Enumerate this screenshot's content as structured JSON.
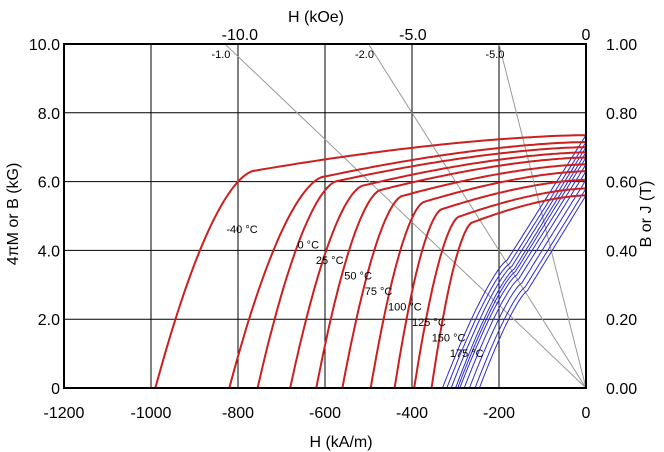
{
  "chart_data": {
    "type": "line",
    "title": "",
    "xlabel": "H (kA/m)",
    "x2label": "H (kOe)",
    "ylabel": "4πM or B (kG)",
    "y2label": "B or J  (T)",
    "xlim": [
      -1200,
      0
    ],
    "ylim": [
      0,
      10
    ],
    "y2lim": [
      0,
      1
    ],
    "x2lim": [
      -15.08,
      0
    ],
    "grid": true,
    "colors": {
      "intrinsic": "#cc1f1f",
      "normal": "#2b2bd0",
      "load_line": "#999999",
      "grid": "#000000"
    },
    "x_ticks": [
      "-1200",
      "-1000",
      "-800",
      "-600",
      "-400",
      "-200",
      "0"
    ],
    "y_ticks": [
      "0",
      "2.0",
      "4.0",
      "6.0",
      "8.0",
      "10.0"
    ],
    "x2_ticks": [
      "-10.0",
      "-5.0",
      "0"
    ],
    "y2_ticks": [
      "0.00",
      "0.20",
      "0.40",
      "0.60",
      "0.80",
      "1.00"
    ],
    "load_line_labels": [
      "-1.0",
      "-2.0",
      "-5.0"
    ],
    "load_lines": [
      {
        "label": "-1.0",
        "x_at_top": -830
      },
      {
        "label": "-2.0",
        "x_at_top": -500
      },
      {
        "label": "-5.0",
        "x_at_top": -200
      }
    ],
    "intrinsic_curves": [
      {
        "name": "-40 °C",
        "br": 7.35,
        "hci": -990,
        "knee": -760
      },
      {
        "name": "0 °C",
        "br": 7.15,
        "hci": -820,
        "knee": -600
      },
      {
        "name": "25 °C",
        "br": 7.0,
        "hci": -755,
        "knee": -570
      },
      {
        "name": "50 °C",
        "br": 6.85,
        "hci": -680,
        "knee": -510
      },
      {
        "name": "75 °C",
        "br": 6.7,
        "hci": -620,
        "knee": -470
      },
      {
        "name": "100 °C",
        "br": 6.5,
        "hci": -560,
        "knee": -420
      },
      {
        "name": "125 °C",
        "br": 6.3,
        "hci": -495,
        "knee": -370
      },
      {
        "name": "150 °C",
        "br": 6.05,
        "hci": -440,
        "knee": -330
      },
      {
        "name": "175 °C",
        "br": 5.8,
        "hci": -395,
        "knee": -290
      },
      {
        "name": "",
        "br": 5.6,
        "hci": -355,
        "knee": -260
      }
    ],
    "normal_curves": [
      {
        "br": 7.35,
        "hcb": -330
      },
      {
        "br": 7.15,
        "hcb": -320
      },
      {
        "br": 7.0,
        "hcb": -310
      },
      {
        "br": 6.85,
        "hcb": -300
      },
      {
        "br": 6.7,
        "hcb": -295
      },
      {
        "br": 6.5,
        "hcb": -290
      },
      {
        "br": 6.3,
        "hcb": -280
      },
      {
        "br": 6.05,
        "hcb": -268
      },
      {
        "br": 5.8,
        "hcb": -255
      },
      {
        "br": 5.6,
        "hcb": -245
      }
    ]
  }
}
